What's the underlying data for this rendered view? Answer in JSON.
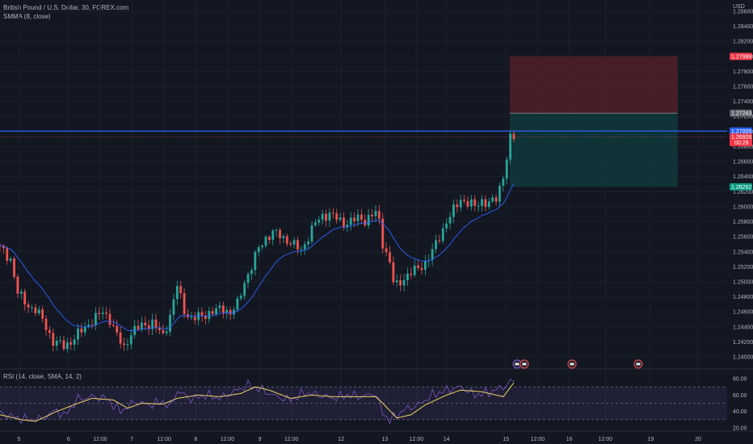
{
  "header": {
    "symbol_line": "British Pound / U.S. Dollar, 30, FOREX.com",
    "indicator_line": "SMMA (8, close)",
    "currency": "USD"
  },
  "rsi_header": {
    "label": "RSI (14, close, SMA, 14, 2)"
  },
  "colors": {
    "background": "#131722",
    "bull": "#26a69a",
    "bear": "#ef5350",
    "smma": "#2962ff",
    "rsi": "#7e57c2",
    "rsi_ma": "#f0d264",
    "hline": "#2962ff",
    "stop_zone": "#4e1f28",
    "target_zone": "#11363a"
  },
  "chart_data": [
    {
      "type": "candlestick",
      "title": "British Pound / U.S. Dollar, 30, FOREX.com",
      "overlay": "SMMA (8, close)",
      "ylim": [
        1.2385,
        1.2875
      ],
      "y_ticks": [
        "1.28600",
        "1.28400",
        "1.28200",
        "1.28000",
        "1.27800",
        "1.27600",
        "1.27400",
        "1.27200",
        "1.27000",
        "1.26800",
        "1.26600",
        "1.26400",
        "1.26200",
        "1.26000",
        "1.25800",
        "1.25600",
        "1.25400",
        "1.25200",
        "1.25000",
        "1.24800",
        "1.24600",
        "1.24400",
        "1.24200",
        "1.24000"
      ],
      "x_ticks": [
        {
          "label": "5",
          "pos": 0.025
        },
        {
          "label": "6",
          "pos": 0.091
        },
        {
          "label": "12:00",
          "pos": 0.133
        },
        {
          "label": "7",
          "pos": 0.175
        },
        {
          "label": "12:00",
          "pos": 0.218
        },
        {
          "label": "8",
          "pos": 0.26
        },
        {
          "label": "12:00",
          "pos": 0.302
        },
        {
          "label": "9",
          "pos": 0.345
        },
        {
          "label": "12:00",
          "pos": 0.387
        },
        {
          "label": "12",
          "pos": 0.453
        },
        {
          "label": "13",
          "pos": 0.511
        },
        {
          "label": "12:00",
          "pos": 0.553
        },
        {
          "label": "14",
          "pos": 0.593
        },
        {
          "label": "15",
          "pos": 0.672
        },
        {
          "label": "12:00",
          "pos": 0.714
        },
        {
          "label": "16",
          "pos": 0.756
        },
        {
          "label": "12:00",
          "pos": 0.804
        },
        {
          "label": "19",
          "pos": 0.864
        },
        {
          "label": "20",
          "pos": 0.927
        }
      ],
      "anchors": [
        [
          0,
          1.2545
        ],
        [
          3,
          1.253
        ],
        [
          5,
          1.2485
        ],
        [
          8,
          1.2468
        ],
        [
          10,
          1.2462
        ],
        [
          12,
          1.245
        ],
        [
          15,
          1.242
        ],
        [
          18,
          1.2415
        ],
        [
          20,
          1.242
        ],
        [
          23,
          1.2435
        ],
        [
          26,
          1.2448
        ],
        [
          29,
          1.246
        ],
        [
          31,
          1.245
        ],
        [
          33,
          1.2428
        ],
        [
          35,
          1.2412
        ],
        [
          37,
          1.2432
        ],
        [
          40,
          1.2442
        ],
        [
          43,
          1.2445
        ],
        [
          46,
          1.2428
        ],
        [
          48,
          1.2455
        ],
        [
          50,
          1.2495
        ],
        [
          52,
          1.2462
        ],
        [
          54,
          1.245
        ],
        [
          57,
          1.2455
        ],
        [
          60,
          1.246
        ],
        [
          63,
          1.2465
        ],
        [
          65,
          1.2458
        ],
        [
          67,
          1.247
        ],
        [
          69,
          1.25
        ],
        [
          71,
          1.252
        ],
        [
          73,
          1.2545
        ],
        [
          75,
          1.2558
        ],
        [
          77,
          1.2565
        ],
        [
          79,
          1.2562
        ],
        [
          81,
          1.2555
        ],
        [
          83,
          1.2548
        ],
        [
          85,
          1.2542
        ],
        [
          87,
          1.256
        ],
        [
          89,
          1.2578
        ],
        [
          91,
          1.2588
        ],
        [
          93,
          1.259
        ],
        [
          95,
          1.2584
        ],
        [
          97,
          1.2578
        ],
        [
          99,
          1.258
        ],
        [
          101,
          1.2585
        ],
        [
          103,
          1.2582
        ],
        [
          105,
          1.2588
        ],
        [
          106,
          1.2592
        ],
        [
          107,
          1.258
        ],
        [
          108,
          1.2552
        ],
        [
          110,
          1.2525
        ],
        [
          111,
          1.25
        ],
        [
          112,
          1.2495
        ],
        [
          114,
          1.2505
        ],
        [
          116,
          1.2512
        ],
        [
          118,
          1.2518
        ],
        [
          120,
          1.2525
        ],
        [
          122,
          1.254
        ],
        [
          124,
          1.256
        ],
        [
          126,
          1.258
        ],
        [
          128,
          1.2595
        ],
        [
          130,
          1.261
        ],
        [
          132,
          1.2605
        ],
        [
          134,
          1.26
        ],
        [
          136,
          1.2608
        ],
        [
          138,
          1.2604
        ],
        [
          140,
          1.261
        ],
        [
          141,
          1.2625
        ],
        [
          142,
          1.2642
        ],
        [
          143,
          1.2665
        ],
        [
          144,
          1.269
        ],
        [
          145,
          1.2692
        ]
      ],
      "last_candle_index": 145,
      "price_labels": [
        {
          "value": 1.27999,
          "text": "1.27999",
          "bg": "#f23645",
          "fg": "#ffffff"
        },
        {
          "value": 1.27243,
          "text": "1.27243",
          "bg": "#5d606b",
          "fg": "#ffffff"
        },
        {
          "value": 1.27005,
          "text": "1.27005",
          "bg": "#2962ff",
          "fg": "#ffffff"
        },
        {
          "value": 1.26926,
          "text": "1.26926",
          "bg": "#f23645",
          "fg": "#ffffff",
          "sub": "00:29"
        },
        {
          "value": 1.26262,
          "text": "1.26262",
          "bg": "#089981",
          "fg": "#ffffff"
        }
      ],
      "horizontal_lines": [
        {
          "value": 1.27005,
          "color": "#2962ff"
        }
      ],
      "position_tool": {
        "entry": 1.27243,
        "stop": 1.27999,
        "target": 1.26262,
        "x_start_pos": 0.677,
        "x_end_pos": 0.9
      }
    },
    {
      "type": "line",
      "title": "RSI (14, close, SMA, 14, 2)",
      "ylim": [
        20,
        85
      ],
      "y_ticks": [
        "80.00",
        "60.00",
        "40.00",
        "20.00"
      ],
      "band": [
        30,
        70
      ],
      "midline": 50,
      "rsi_anchors": [
        [
          0,
          38
        ],
        [
          4,
          33
        ],
        [
          8,
          30
        ],
        [
          12,
          31
        ],
        [
          16,
          42
        ],
        [
          18,
          34
        ],
        [
          22,
          55
        ],
        [
          26,
          58
        ],
        [
          30,
          56
        ],
        [
          34,
          40
        ],
        [
          38,
          52
        ],
        [
          42,
          48
        ],
        [
          46,
          52
        ],
        [
          48,
          45
        ],
        [
          50,
          65
        ],
        [
          54,
          55
        ],
        [
          58,
          60
        ],
        [
          62,
          56
        ],
        [
          66,
          64
        ],
        [
          70,
          72
        ],
        [
          74,
          66
        ],
        [
          78,
          58
        ],
        [
          82,
          54
        ],
        [
          86,
          63
        ],
        [
          90,
          60
        ],
        [
          94,
          56
        ],
        [
          98,
          60
        ],
        [
          102,
          58
        ],
        [
          106,
          62
        ],
        [
          108,
          38
        ],
        [
          110,
          29
        ],
        [
          114,
          42
        ],
        [
          118,
          48
        ],
        [
          122,
          60
        ],
        [
          126,
          66
        ],
        [
          130,
          70
        ],
        [
          134,
          60
        ],
        [
          138,
          63
        ],
        [
          142,
          70
        ],
        [
          145,
          78
        ]
      ],
      "ma_anchors": [
        [
          0,
          36
        ],
        [
          6,
          30
        ],
        [
          10,
          28
        ],
        [
          16,
          40
        ],
        [
          22,
          50
        ],
        [
          26,
          56
        ],
        [
          32,
          54
        ],
        [
          36,
          44
        ],
        [
          40,
          50
        ],
        [
          46,
          49
        ],
        [
          50,
          56
        ],
        [
          56,
          60
        ],
        [
          62,
          58
        ],
        [
          68,
          62
        ],
        [
          72,
          70
        ],
        [
          76,
          66
        ],
        [
          82,
          56
        ],
        [
          88,
          60
        ],
        [
          94,
          58
        ],
        [
          100,
          58
        ],
        [
          106,
          58
        ],
        [
          108,
          50
        ],
        [
          112,
          32
        ],
        [
          116,
          36
        ],
        [
          120,
          48
        ],
        [
          126,
          60
        ],
        [
          130,
          66
        ],
        [
          136,
          64
        ],
        [
          142,
          58
        ],
        [
          145,
          75
        ]
      ]
    }
  ]
}
